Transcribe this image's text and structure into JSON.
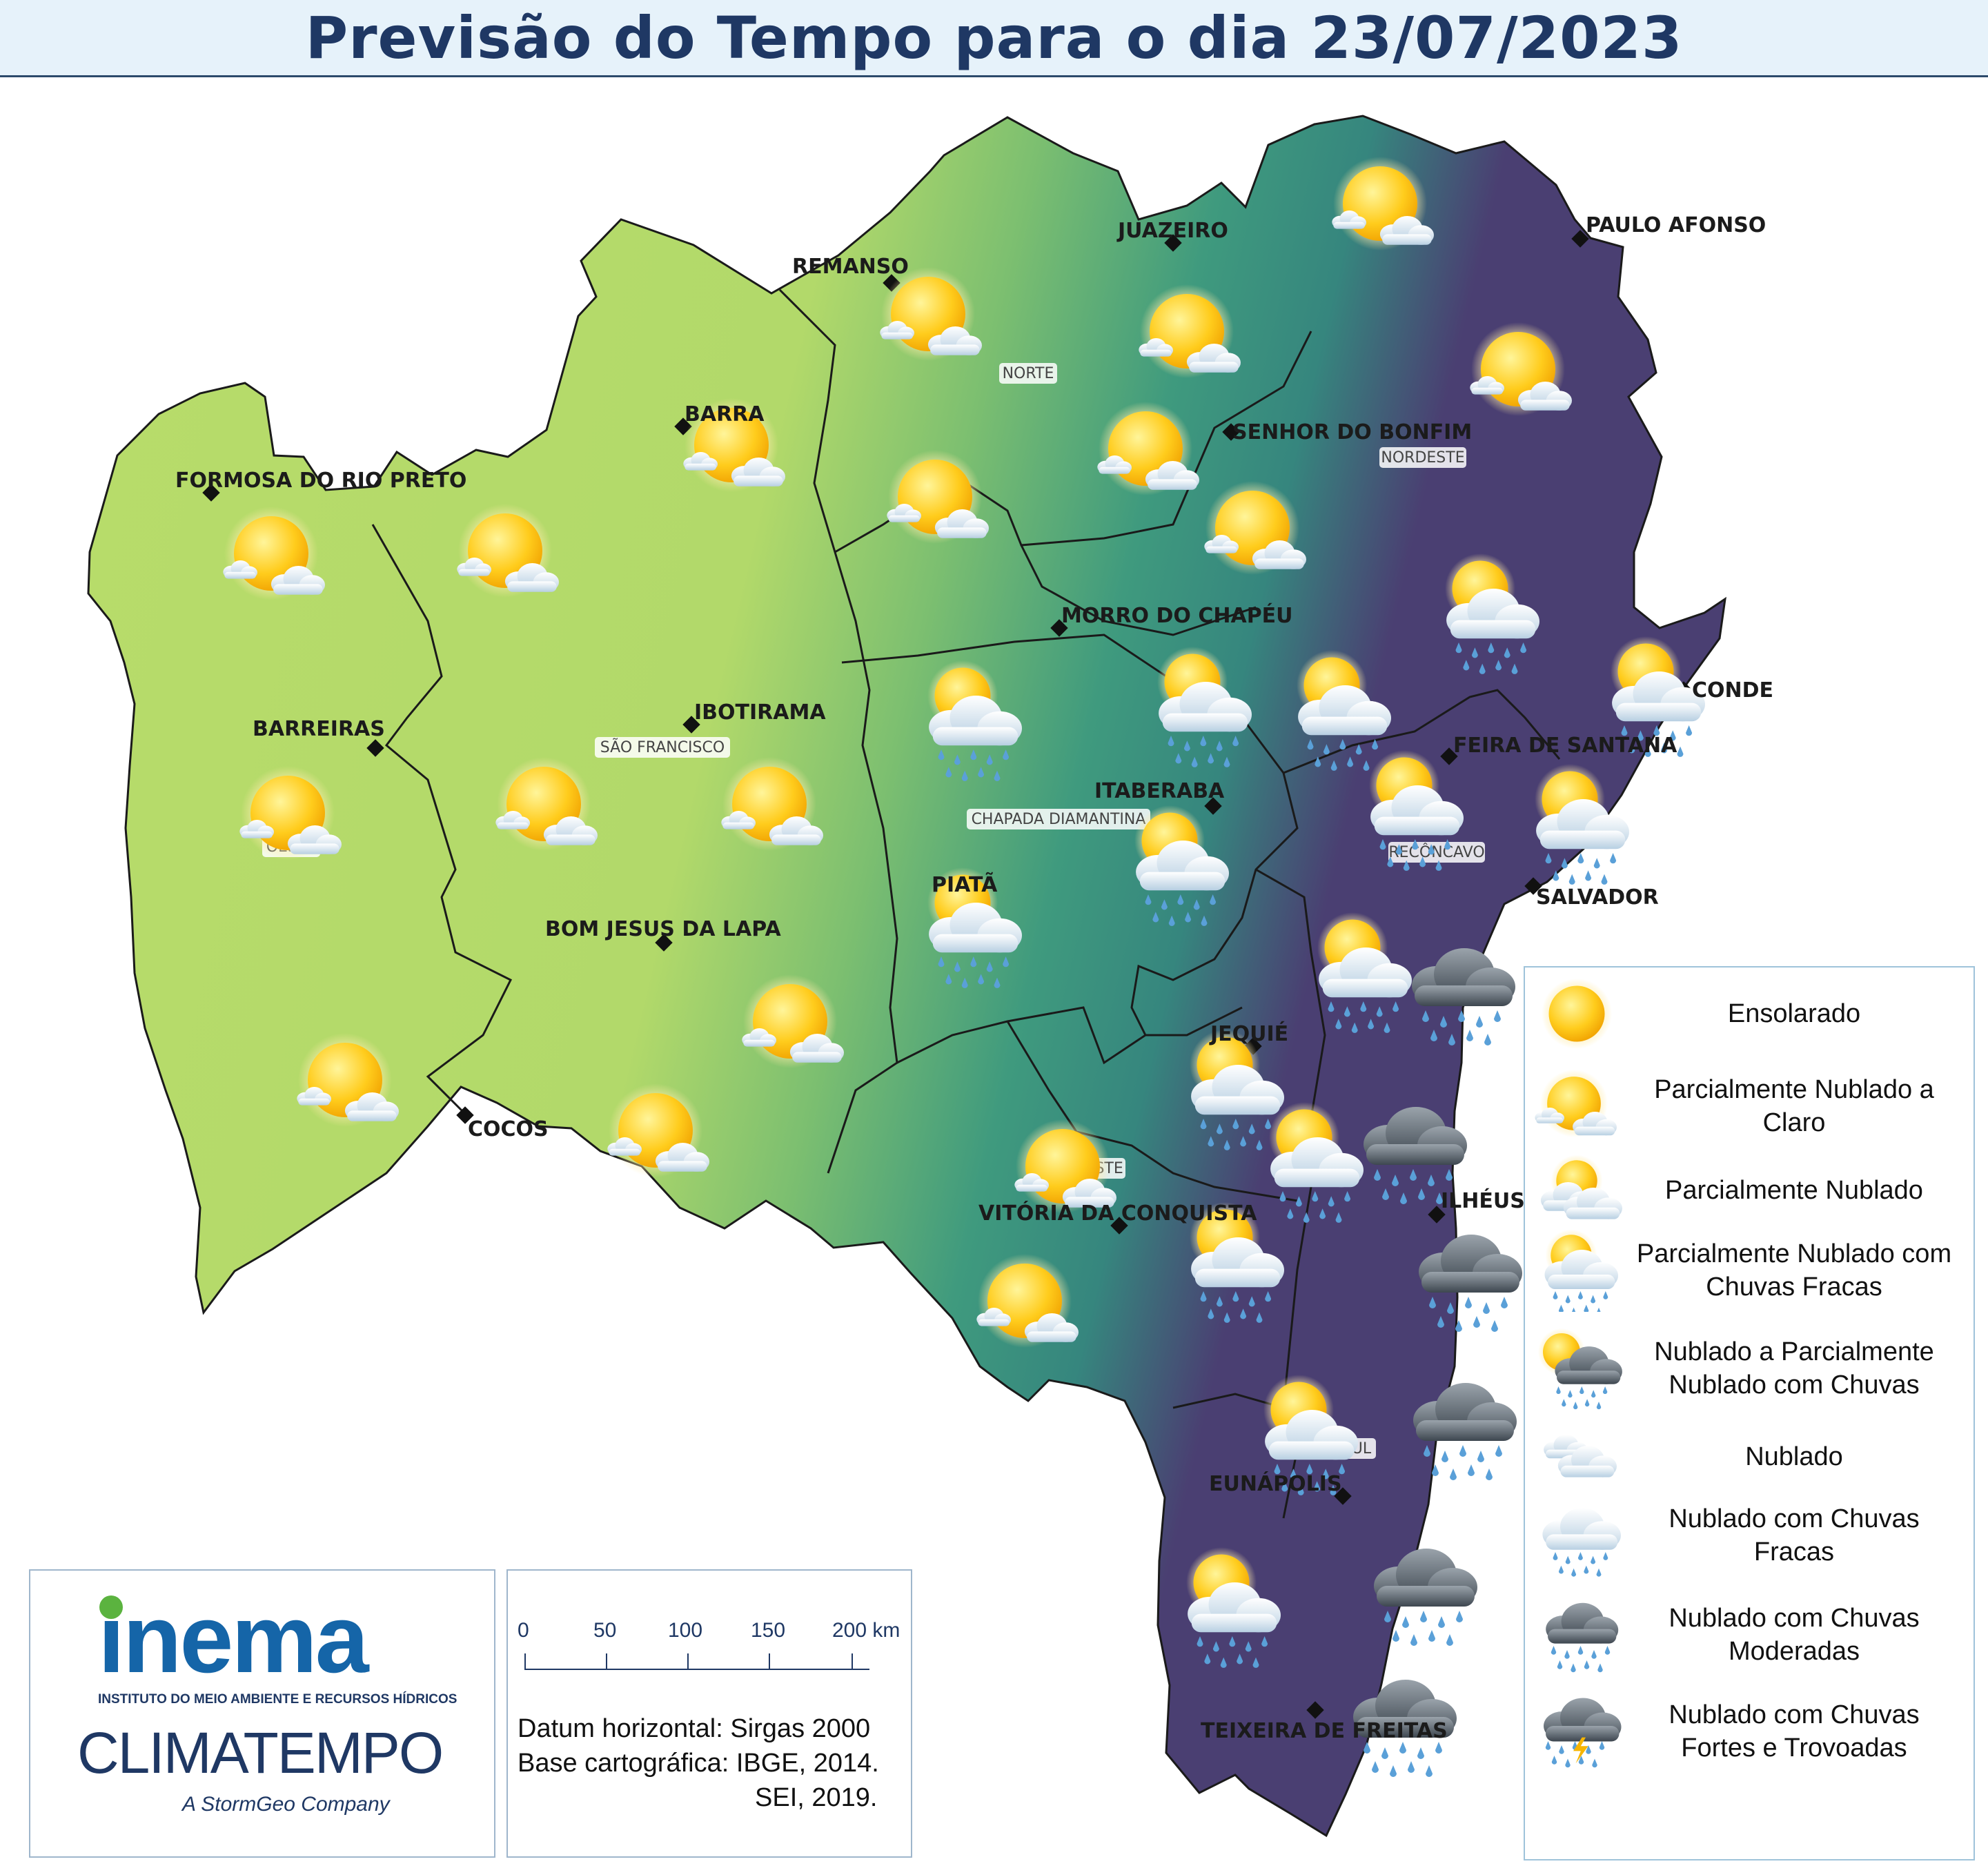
{
  "title": "Previsão do Tempo para o dia 23/07/2023",
  "colors": {
    "title_text": "#1f3864",
    "title_bg": "#e6f2fa",
    "map_dry": "#b8dc6a",
    "map_mid": "#3f9a7e",
    "map_wet": "#4a3f72"
  },
  "cities": [
    {
      "name": "PAULO AFONSO"
    },
    {
      "name": "JUAZEIRO"
    },
    {
      "name": "REMANSO"
    },
    {
      "name": "SENHOR DO BONFIM"
    },
    {
      "name": "BARRA"
    },
    {
      "name": "FORMOSA DO RIO PRETO"
    },
    {
      "name": "MORRO DO CHAPÉU"
    },
    {
      "name": "CONDE"
    },
    {
      "name": "IBOTIRAMA"
    },
    {
      "name": "BARREIRAS"
    },
    {
      "name": "FEIRA DE SANTANA"
    },
    {
      "name": "ITABERABA"
    },
    {
      "name": "SALVADOR"
    },
    {
      "name": "PIATÃ"
    },
    {
      "name": "BOM JESUS DA LAPA"
    },
    {
      "name": "JEQUIÉ"
    },
    {
      "name": "COCOS"
    },
    {
      "name": "ILHÉUS"
    },
    {
      "name": "VITÓRIA DA CONQUISTA"
    },
    {
      "name": "EUNÁPOLIS"
    },
    {
      "name": "TEIXEIRA DE FREITAS"
    }
  ],
  "regions": [
    "NORTE",
    "NORDESTE",
    "SÃO FRANCISCO",
    "OESTE",
    "CHAPADA DIAMANTINA",
    "RECÔNCAVO",
    "SUDOESTE",
    "SUL"
  ],
  "legend": [
    {
      "label": "Ensolarado",
      "icon": "sunny-icon"
    },
    {
      "label": "Parcialmente Nublado a Claro",
      "icon": "partly-cloudy-clear-icon"
    },
    {
      "label": "Parcialmente Nublado",
      "icon": "partly-cloudy-icon"
    },
    {
      "label": "Parcialmente Nublado com Chuvas Fracas",
      "icon": "partly-cloudy-light-rain-icon"
    },
    {
      "label": "Nublado a Parcialmente Nublado com Chuvas",
      "icon": "cloudy-partly-rain-icon"
    },
    {
      "label": "Nublado",
      "icon": "cloudy-icon"
    },
    {
      "label": "Nublado com Chuvas Fracas",
      "icon": "cloudy-light-rain-icon"
    },
    {
      "label": "Nublado com Chuvas Moderadas",
      "icon": "cloudy-moderate-rain-icon"
    },
    {
      "label": "Nublado com Chuvas Fortes e Trovoadas",
      "icon": "cloudy-heavy-rain-thunder-icon"
    }
  ],
  "scale": {
    "ticks": [
      "0",
      "50",
      "100",
      "150",
      "200 km"
    ]
  },
  "source": {
    "datum": "Datum horizontal: Sirgas 2000",
    "base_prefix": "Base cartográfica: IBGE, 2014.",
    "base_line2": "SEI, 2019."
  },
  "logos": {
    "inema": "inema",
    "inema_subtitle": "INSTITUTO DO MEIO AMBIENTE E RECURSOS HÍDRICOS",
    "climatempo": "CLIMATEMPO",
    "stormgeo": "A StormGeo Company"
  },
  "icons": [
    {
      "type": "partly-clear"
    },
    {
      "type": "partly-clear"
    },
    {
      "type": "partly-clear"
    },
    {
      "type": "partly-clear"
    },
    {
      "type": "partly-clear"
    },
    {
      "type": "partly-clear"
    },
    {
      "type": "partly-clear"
    },
    {
      "type": "partly-clear"
    },
    {
      "type": "partly-clear"
    },
    {
      "type": "partly-clear"
    },
    {
      "type": "partly-clear"
    },
    {
      "type": "partly-clear"
    },
    {
      "type": "partly-clear"
    },
    {
      "type": "partly-clear"
    },
    {
      "type": "partly-clear"
    },
    {
      "type": "partly-clear"
    },
    {
      "type": "partly-clear"
    },
    {
      "type": "partly-clear"
    },
    {
      "type": "partly-rain"
    },
    {
      "type": "partly-rain"
    },
    {
      "type": "partly-rain"
    },
    {
      "type": "partly-rain"
    },
    {
      "type": "partly-rain"
    },
    {
      "type": "partly-rain"
    },
    {
      "type": "partly-rain"
    },
    {
      "type": "partly-rain"
    },
    {
      "type": "partly-rain"
    },
    {
      "type": "partly-rain"
    },
    {
      "type": "partly-rain"
    },
    {
      "type": "partly-rain"
    },
    {
      "type": "partly-rain"
    },
    {
      "type": "partly-rain"
    },
    {
      "type": "partly-rain"
    },
    {
      "type": "heavy-rain"
    },
    {
      "type": "heavy-rain"
    },
    {
      "type": "heavy-rain"
    },
    {
      "type": "heavy-rain"
    },
    {
      "type": "heavy-rain"
    },
    {
      "type": "heavy-rain"
    }
  ]
}
